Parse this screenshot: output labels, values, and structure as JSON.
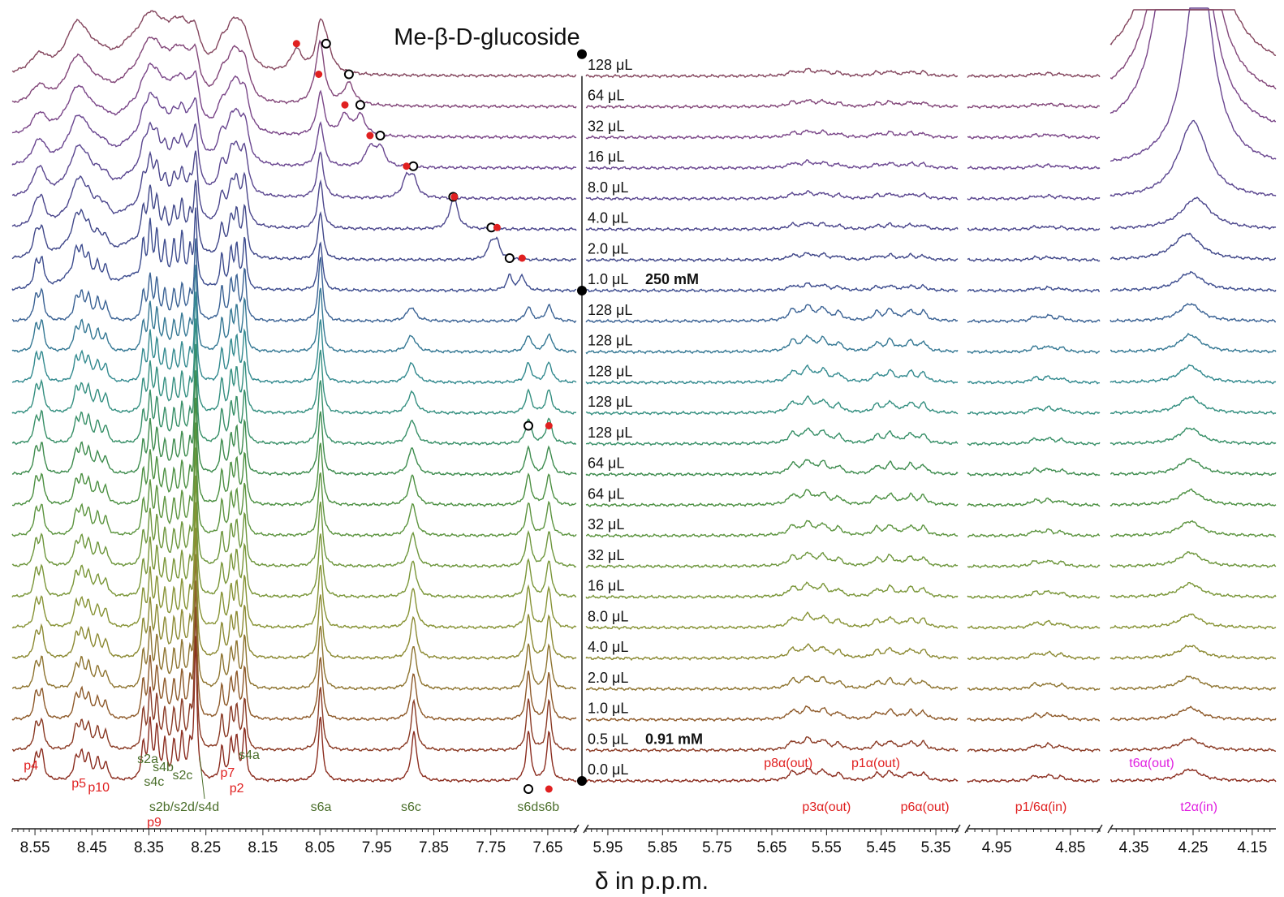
{
  "chart_data": {
    "type": "line",
    "title": "Me-β-D-glucoside",
    "xlabel": "δ in p.p.m.",
    "tick_labels": [
      [
        "8.55",
        "8.45",
        "8.35",
        "8.25",
        "8.15",
        "8.05",
        "7.95",
        "7.85",
        "7.75",
        "7.65"
      ],
      [
        "5.95",
        "5.85",
        "5.75",
        "5.65",
        "5.55",
        "5.45",
        "5.35"
      ],
      [
        "4.95",
        "4.85"
      ],
      [
        "4.35",
        "4.25",
        "4.15"
      ]
    ],
    "panels": [
      {
        "range": [
          8.59,
          7.6
        ]
      },
      {
        "range": [
          5.99,
          5.31
        ]
      },
      {
        "range": [
          4.99,
          4.81
        ]
      },
      {
        "range": [
          4.39,
          4.11
        ]
      }
    ],
    "series": [
      {
        "name": "0.0 μL",
        "color": "#8b2d1f"
      },
      {
        "name": "0.5 μL",
        "color": "#8a3a24"
      },
      {
        "name": "1.0 μL",
        "color": "#8e5a2a"
      },
      {
        "name": "2.0 μL",
        "color": "#8e7430"
      },
      {
        "name": "4.0 μL",
        "color": "#8c8a33"
      },
      {
        "name": "8.0 μL",
        "color": "#879335"
      },
      {
        "name": "16 μL",
        "color": "#7a9638"
      },
      {
        "name": "32 μL",
        "color": "#6d963c"
      },
      {
        "name": "32 μL",
        "color": "#5c943f"
      },
      {
        "name": "64 μL",
        "color": "#4c9042"
      },
      {
        "name": "64 μL",
        "color": "#3e8c4e"
      },
      {
        "name": "128 μL",
        "color": "#378f67"
      },
      {
        "name": "128 μL",
        "color": "#348f80"
      },
      {
        "name": "128 μL",
        "color": "#338a8f"
      },
      {
        "name": "128 μL",
        "color": "#357894"
      },
      {
        "name": "128 μL",
        "color": "#3a6294"
      },
      {
        "name": "1.0 μL",
        "color": "#3d4c8e"
      },
      {
        "name": "2.0 μL",
        "color": "#404789"
      },
      {
        "name": "4.0 μL",
        "color": "#4b468c"
      },
      {
        "name": "8.0 μL",
        "color": "#5a468f"
      },
      {
        "name": "16 μL",
        "color": "#6a4690"
      },
      {
        "name": "32 μL",
        "color": "#7a4688"
      },
      {
        "name": "64 μL",
        "color": "#824679"
      },
      {
        "name": "128 μL",
        "color": "#84465e"
      }
    ],
    "concentration_labels": [
      {
        "series_index": 1,
        "text": "0.91 mM"
      },
      {
        "series_index": 16,
        "text": "250 mM"
      }
    ],
    "peak_labels_red": [
      {
        "text": "p4",
        "ppm": 8.557
      },
      {
        "text": "p5",
        "ppm": 8.473
      },
      {
        "text": "p10",
        "ppm": 8.438
      },
      {
        "text": "p9",
        "ppm": 8.355
      },
      {
        "text": "p7",
        "ppm": 8.212
      },
      {
        "text": "p2",
        "ppm": 8.196
      }
    ],
    "peak_labels_green": [
      {
        "text": "s2a",
        "ppm": 8.352
      },
      {
        "text": "s4b",
        "ppm": 8.325
      },
      {
        "text": "s4c",
        "ppm": 8.341
      },
      {
        "text": "s2c",
        "ppm": 8.291
      },
      {
        "text": "s4a",
        "ppm": 8.174
      },
      {
        "text": "s2b/s2d/s4d",
        "ppm": 8.288
      },
      {
        "text": "s6a",
        "ppm": 8.048
      },
      {
        "text": "s6c",
        "ppm": 7.89
      },
      {
        "text": "s6d",
        "ppm": 7.685
      },
      {
        "text": "s6b",
        "ppm": 7.648
      }
    ],
    "region_labels": [
      {
        "text": "p8α(out)",
        "ppm": 5.62,
        "color": "#e02020"
      },
      {
        "text": "p1α(out)",
        "ppm": 5.46,
        "color": "#e02020"
      },
      {
        "text": "p3α(out)",
        "ppm": 5.55,
        "color": "#e02020"
      },
      {
        "text": "p6α(out)",
        "ppm": 5.37,
        "color": "#e02020"
      },
      {
        "text": "p1/6α(in)",
        "ppm": 4.89,
        "color": "#e02020"
      },
      {
        "text": "t6α(out)",
        "ppm": 4.32,
        "color": "#e020e0"
      },
      {
        "text": "t2α(in)",
        "ppm": 4.24,
        "color": "#e020e0"
      }
    ],
    "shifting_peaks": {
      "open_circle_ppm": [
        7.684,
        null,
        null,
        null,
        null,
        null,
        null,
        null,
        null,
        null,
        7.684,
        null,
        null,
        null,
        null,
        null,
        7.717,
        7.749,
        7.816,
        7.886,
        7.944,
        7.979,
        7.999,
        8.039
      ],
      "red_dot_ppm": [
        7.648,
        null,
        null,
        null,
        null,
        null,
        null,
        null,
        null,
        null,
        7.648,
        null,
        null,
        null,
        null,
        null,
        7.695,
        7.739,
        7.814,
        7.898,
        7.962,
        8.006,
        8.052,
        8.091
      ]
    },
    "legend": "none",
    "grid": false
  },
  "colors": {
    "red_marker": "#e02020",
    "green_label": "#4a6e2a",
    "magenta_label": "#e020e0",
    "axis": "#222222"
  }
}
